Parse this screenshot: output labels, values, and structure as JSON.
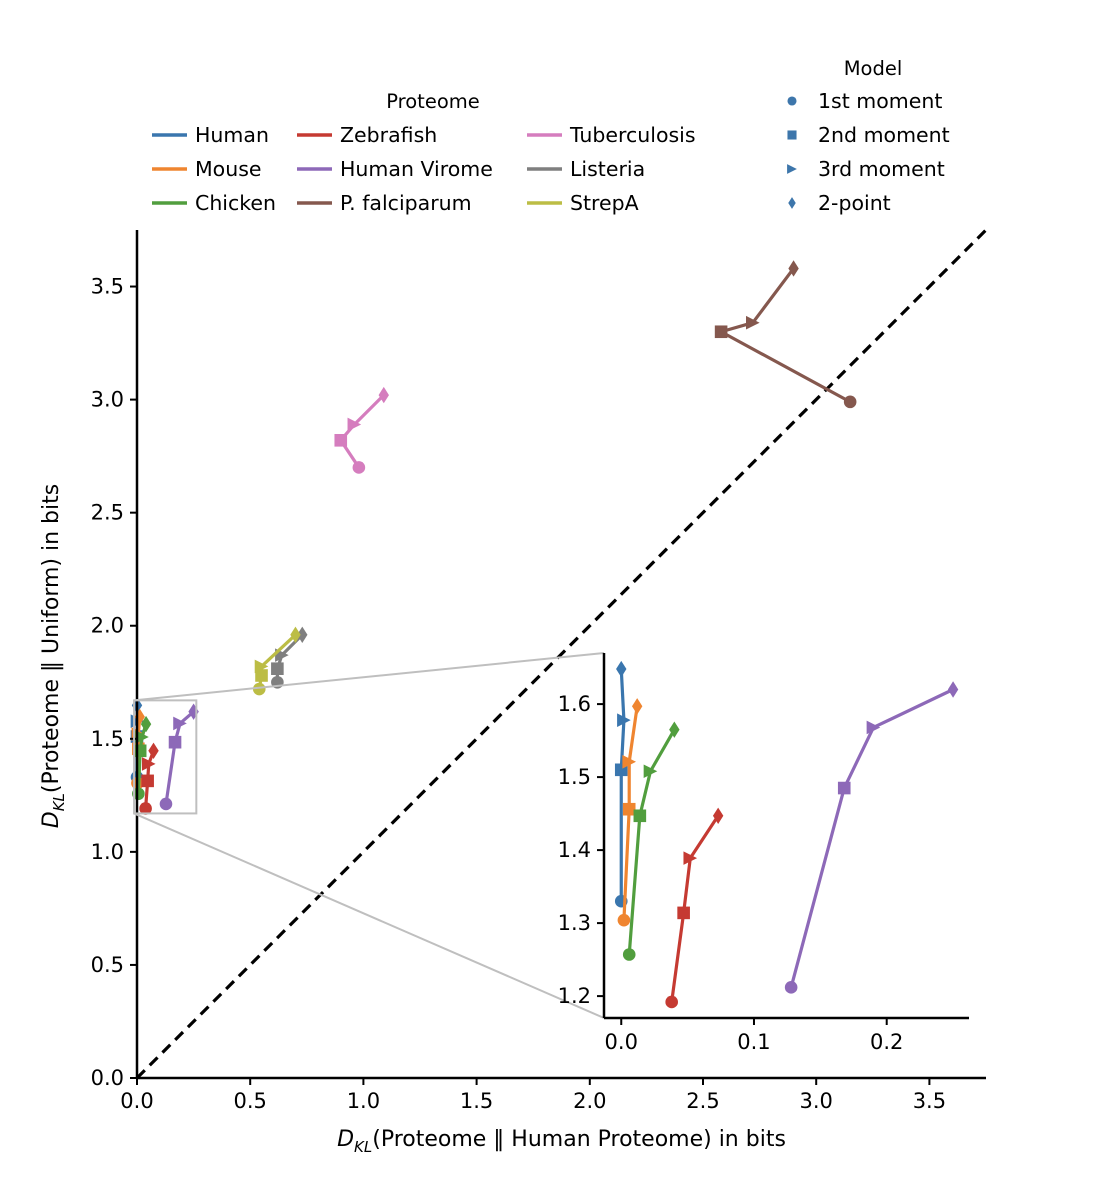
{
  "chart_data": {
    "type": "line",
    "xlabel": {
      "prefix": "D",
      "sub": "KL",
      "rest": "(Proteome ‖ Human Proteome) in bits"
    },
    "ylabel": {
      "prefix": "D",
      "sub": "KL",
      "rest": "(Proteome ‖ Uniform) in bits"
    },
    "xlim": [
      0,
      3.75
    ],
    "ylim": [
      0,
      3.75
    ],
    "xticks": [
      "0.0",
      "0.5",
      "1.0",
      "1.5",
      "2.0",
      "2.5",
      "3.0",
      "3.5"
    ],
    "yticks": [
      "0.0",
      "0.5",
      "1.0",
      "1.5",
      "2.0",
      "2.5",
      "3.0",
      "3.5"
    ],
    "diagonal": "y = x (dashed)",
    "legend_proteome": {
      "title": "Proteome",
      "entries": [
        "Human",
        "Mouse",
        "Chicken",
        "Zebrafish",
        "Human Virome",
        "P. falciparum",
        "Tuberculosis",
        "Listeria",
        "StrepA"
      ]
    },
    "legend_model": {
      "title": "Model",
      "entries": [
        {
          "label": "1st moment",
          "marker": "circle"
        },
        {
          "label": "2nd moment",
          "marker": "square"
        },
        {
          "label": "3rd moment",
          "marker": "triangle-right"
        },
        {
          "label": "2-point",
          "marker": "thin-diamond"
        }
      ],
      "color": "#3d76ab"
    },
    "models": [
      "1st moment",
      "2nd moment",
      "3rd moment",
      "2-point"
    ],
    "series": [
      {
        "name": "Human",
        "color": "#3a76ae",
        "points": [
          [
            0.0,
            1.33
          ],
          [
            0.0,
            1.51
          ],
          [
            0.002,
            1.578
          ],
          [
            0.0,
            1.648
          ]
        ]
      },
      {
        "name": "Mouse",
        "color": "#ef8530",
        "points": [
          [
            0.002,
            1.304
          ],
          [
            0.006,
            1.456
          ],
          [
            0.006,
            1.521
          ],
          [
            0.012,
            1.597
          ]
        ]
      },
      {
        "name": "Chicken",
        "color": "#519e3e",
        "points": [
          [
            0.006,
            1.257
          ],
          [
            0.014,
            1.447
          ],
          [
            0.022,
            1.508
          ],
          [
            0.04,
            1.565
          ]
        ]
      },
      {
        "name": "Zebrafish",
        "color": "#c53a32",
        "points": [
          [
            0.038,
            1.192
          ],
          [
            0.047,
            1.314
          ],
          [
            0.052,
            1.389
          ],
          [
            0.073,
            1.447
          ]
        ]
      },
      {
        "name": "Human Virome",
        "color": "#8d69b8",
        "points": [
          [
            0.128,
            1.212
          ],
          [
            0.168,
            1.485
          ],
          [
            0.19,
            1.568
          ],
          [
            0.25,
            1.62
          ]
        ]
      },
      {
        "name": "P. falciparum",
        "color": "#85584e",
        "points": [
          [
            3.15,
            2.99
          ],
          [
            2.58,
            3.3
          ],
          [
            2.72,
            3.34
          ],
          [
            2.9,
            3.58
          ]
        ]
      },
      {
        "name": "Tuberculosis",
        "color": "#d57dbe",
        "points": [
          [
            0.98,
            2.7
          ],
          [
            0.9,
            2.82
          ],
          [
            0.96,
            2.89
          ],
          [
            1.09,
            3.02
          ]
        ]
      },
      {
        "name": "Listeria",
        "color": "#7f7f7f",
        "points": [
          [
            0.62,
            1.75
          ],
          [
            0.62,
            1.81
          ],
          [
            0.64,
            1.87
          ],
          [
            0.73,
            1.96
          ]
        ]
      },
      {
        "name": "StrepA",
        "color": "#bcbd45",
        "points": [
          [
            0.54,
            1.72
          ],
          [
            0.55,
            1.78
          ],
          [
            0.55,
            1.82
          ],
          [
            0.7,
            1.96
          ]
        ]
      }
    ],
    "inset": {
      "xlim": [
        -0.013,
        0.262
      ],
      "ylim": [
        1.17,
        1.67
      ],
      "xticks": [
        "0.0",
        "0.1",
        "0.2"
      ],
      "yticks": [
        "1.2",
        "1.3",
        "1.4",
        "1.5",
        "1.6"
      ],
      "series_shown": [
        "Human",
        "Mouse",
        "Chicken",
        "Zebrafish",
        "Human Virome"
      ]
    }
  }
}
